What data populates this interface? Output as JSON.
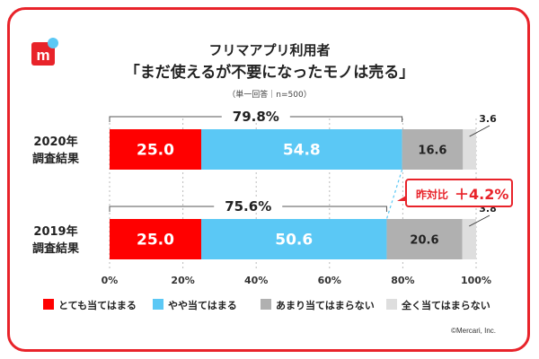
{
  "title_line1": "フリマアプリ利用者",
  "title_line2": "「まだ使えるが不要になったモノは売る」",
  "note": "（単一回答｜n=500）",
  "copyright": "©Mercari, Inc.",
  "colors": {
    "accent": "#e8232a",
    "series": [
      "#ff0000",
      "#5bc8f5",
      "#b0b0b0",
      "#dedede"
    ]
  },
  "chart_data": {
    "type": "bar",
    "orientation": "horizontal",
    "stacked": true,
    "categories": [
      [
        "2020年",
        "調査結果"
      ],
      [
        "2019年",
        "調査結果"
      ]
    ],
    "series": [
      {
        "name": "とても当てはまる",
        "values": [
          25.0,
          25.0
        ],
        "labels": [
          "25.0",
          "25.0"
        ]
      },
      {
        "name": "やや当てはまる",
        "values": [
          54.8,
          50.6
        ],
        "labels": [
          "54.8",
          "50.6"
        ]
      },
      {
        "name": "あまり当てはまらない",
        "values": [
          16.6,
          20.6
        ],
        "labels": [
          "16.6",
          "20.6"
        ]
      },
      {
        "name": "全く当てはまらない",
        "values": [
          3.6,
          3.8
        ],
        "labels": [
          "3.6",
          "3.8"
        ]
      }
    ],
    "totals": [
      {
        "value": 79.8,
        "label": "79.8%"
      },
      {
        "value": 75.6,
        "label": "75.6%"
      }
    ],
    "xlim": [
      0,
      100
    ],
    "xticks": [
      0,
      20,
      40,
      60,
      80,
      100
    ],
    "xtick_labels": [
      "0%",
      "20%",
      "40%",
      "60%",
      "80%",
      "100%"
    ],
    "legend_position": "bottom",
    "annotation": {
      "prefix": "昨対比",
      "value": "＋4.2%"
    }
  }
}
